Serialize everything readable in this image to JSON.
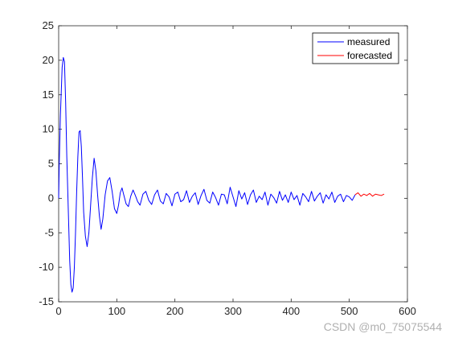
{
  "chart_data": {
    "type": "line",
    "title": "",
    "xlabel": "",
    "ylabel": "",
    "xlim": [
      0,
      600
    ],
    "ylim": [
      -15,
      25
    ],
    "x_ticks": [
      0,
      100,
      200,
      300,
      400,
      500,
      600
    ],
    "y_ticks": [
      -15,
      -10,
      -5,
      0,
      5,
      10,
      15,
      20,
      25
    ],
    "grid": false,
    "legend_position": "top-right",
    "series": [
      {
        "name": "measured",
        "color": "#0000ff",
        "x": [
          0,
          1,
          3,
          6,
          8,
          10,
          12,
          14,
          17,
          19,
          21,
          23,
          25,
          27,
          29,
          31,
          33,
          35,
          37,
          39,
          41,
          43,
          46,
          49,
          52,
          55,
          58,
          61,
          64,
          67,
          70,
          73,
          76,
          80,
          84,
          88,
          92,
          96,
          100,
          103,
          106,
          109,
          112,
          116,
          120,
          124,
          128,
          132,
          136,
          140,
          145,
          150,
          155,
          160,
          165,
          170,
          175,
          180,
          185,
          190,
          195,
          200,
          205,
          210,
          215,
          220,
          225,
          230,
          235,
          240,
          245,
          250,
          255,
          260,
          265,
          270,
          275,
          280,
          285,
          290,
          295,
          300,
          305,
          310,
          315,
          320,
          325,
          330,
          335,
          340,
          345,
          350,
          355,
          360,
          365,
          370,
          375,
          380,
          385,
          390,
          395,
          400,
          405,
          410,
          415,
          420,
          425,
          430,
          435,
          440,
          445,
          450,
          455,
          460,
          465,
          470,
          475,
          480,
          485,
          490,
          495,
          500,
          505,
          510
        ],
        "y": [
          0,
          5,
          12,
          19,
          20.4,
          19.8,
          14,
          6,
          -3,
          -9,
          -12.5,
          -13.6,
          -13,
          -10,
          -5,
          1,
          6,
          9.6,
          9.8,
          7.5,
          3,
          -2,
          -5.5,
          -7,
          -5,
          -1,
          3,
          5.8,
          4,
          0.5,
          -2.5,
          -4.5,
          -3,
          0.5,
          2.5,
          3,
          1,
          -1.5,
          -2.2,
          -1,
          0.8,
          1.5,
          0.5,
          -0.8,
          -1.2,
          0.3,
          1.2,
          0.4,
          -0.5,
          -1,
          0.6,
          1,
          -0.3,
          -0.9,
          0.5,
          1.2,
          -0.4,
          -0.8,
          0.7,
          0.2,
          -1.1,
          0.6,
          0.9,
          -0.5,
          -0.2,
          1.1,
          -0.6,
          0.3,
          0.8,
          -0.9,
          0.4,
          1.3,
          -0.3,
          -0.7,
          0.9,
          0.1,
          -1,
          0.6,
          0.5,
          -0.8,
          1.6,
          0.2,
          -1.2,
          1.1,
          -0.1,
          0.8,
          -0.9,
          0.5,
          1.2,
          -0.6,
          0.3,
          -0.2,
          0.9,
          -1,
          0.6,
          0.1,
          -0.7,
          1,
          -0.3,
          0.5,
          -0.6,
          0.9,
          -0.2,
          0.4,
          -1,
          0.7,
          0.2,
          -0.5,
          1,
          -0.4,
          0.3,
          0.8,
          -0.7,
          0.5,
          -0.1,
          0.9,
          -0.6,
          0.3,
          0.6,
          -0.5,
          0.4,
          0.2,
          -0.3,
          0.5
        ]
      },
      {
        "name": "forecasted",
        "color": "#ff0000",
        "x": [
          510,
          515,
          520,
          525,
          530,
          535,
          540,
          545,
          550,
          555,
          560
        ],
        "y": [
          0.5,
          0.8,
          0.3,
          0.6,
          0.4,
          0.7,
          0.3,
          0.6,
          0.5,
          0.4,
          0.6
        ]
      }
    ]
  },
  "legend": {
    "measured_label": "measured",
    "forecasted_label": "forecasted"
  },
  "watermark": "CSDN @m0_75075544"
}
